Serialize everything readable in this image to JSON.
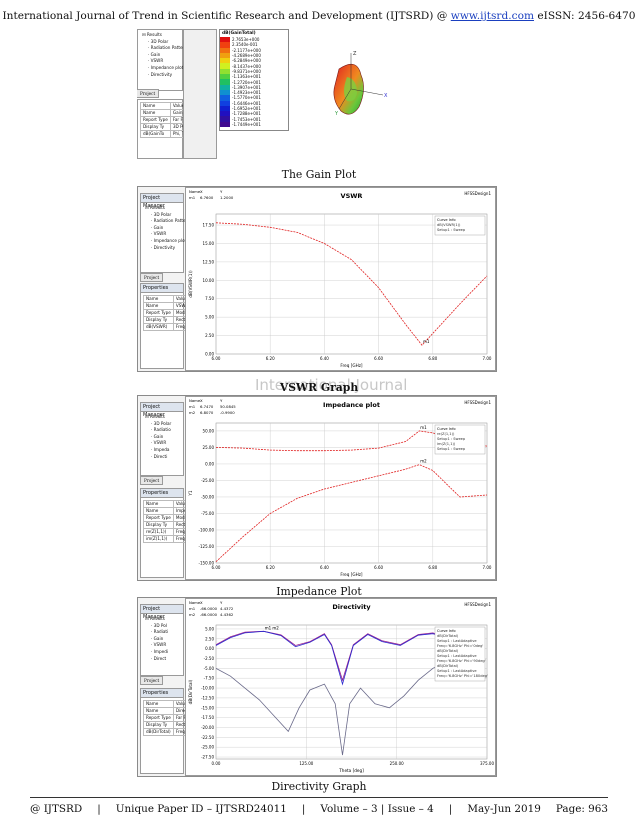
{
  "header": {
    "text": "International Journal of Trend in Scientific Research and Development (IJTSRD) @",
    "link": "www.ijtsrd.com",
    "issn": "eISSN: 2456-6470"
  },
  "footer": {
    "left": "@ IJTSRD",
    "paper_id": "Unique Paper ID – IJTSRD24011",
    "volume": "Volume – 3 | Issue – 4",
    "date": "May-Jun 2019",
    "page": "Page: 963"
  },
  "captions": {
    "gain": "The Gain Plot",
    "vswr": "VSWR Graph",
    "impedance": "Impedance Plot",
    "directivity": "Directivity Graph"
  },
  "watermark": "International Journal",
  "gain_figure": {
    "tree": [
      "Results",
      "3D Polar",
      "Radiation Pattern",
      "Gain",
      "VSWR",
      "Impedance plot",
      "Directivity"
    ],
    "props_header": [
      "Name",
      "Value"
    ],
    "props_rows": [
      [
        "Name",
        "Gain"
      ],
      [
        "Report Type",
        "Far Fiel"
      ],
      [
        "Display Ty",
        "3D Pol"
      ],
      [
        "dB(GainTo",
        "Phi, Th"
      ]
    ],
    "legend_title": "dB(GainTotal)",
    "legend_values": [
      "2.7653e+000",
      "2.3540e-001",
      "-2.1177e+000",
      "-4.2689e+000",
      "-6.2849e+000",
      "-8.1437e+000",
      "-9.8371e+000",
      "-1.1363e+001",
      "-1.2720e+001",
      "-1.3907e+001",
      "-1.4923e+001",
      "-1.5770e+001",
      "-1.6446e+001",
      "-1.6952e+001",
      "-1.7288e+001",
      "-1.7453e+001",
      "-1.7449e+001"
    ],
    "axes": [
      "Z",
      "X",
      "Y"
    ],
    "tab": "Project"
  },
  "vswr_figure": {
    "title": "VSWR",
    "design": "HFSSDesign1",
    "tree": [
      "Results",
      "3D Polar",
      "Radiation Patte",
      "Gain",
      "VSWR",
      "Impedance plot",
      "Directivity"
    ],
    "props_header": [
      "Name",
      "Value"
    ],
    "props_rows": [
      [
        "Name",
        "VSWR"
      ],
      [
        "Report Type",
        "Modal..."
      ],
      [
        "Display Ty",
        "Rectan..."
      ],
      [
        "dB(VSWR)",
        "Freq, dl"
      ]
    ],
    "marker_header": [
      "Name",
      "X",
      "Y"
    ],
    "marker_row": [
      "m1",
      "6.7600",
      "1.2000"
    ],
    "legend": [
      "Curve Info",
      "dB(VSWR(1))",
      "Setup1 : Sweep"
    ],
    "xlabel": "Freq [GHz]",
    "ylabel": "dB(VSWR(1))",
    "marker": "m1",
    "tab": "Project"
  },
  "impedance_figure": {
    "title": "Impedance plot",
    "design": "HFSSDesign1",
    "tree": [
      "Results",
      "3D Polar",
      "Radiatio",
      "Gain",
      "VSWR",
      "Impeda",
      "Directi"
    ],
    "props_header": [
      "Name",
      "Value"
    ],
    "props_rows": [
      [
        "Name",
        "Impeda..."
      ],
      [
        "Report Type",
        "Modal..."
      ],
      [
        "Display Ty",
        "Rectan..."
      ],
      [
        "re(Z(1,1))",
        "Freq,..."
      ],
      [
        "im(Z(1,1))",
        "Freq,..."
      ]
    ],
    "marker_header": [
      "Name",
      "X",
      "Y"
    ],
    "marker_rows": [
      [
        "m1",
        "6.7470",
        "50.0845"
      ],
      [
        "m2",
        "6.8070",
        "-0.9900"
      ]
    ],
    "legend": [
      "Curve Info",
      "re(Z(1,1))",
      "Setup1 : Sweep",
      "im(Z(1,1))",
      "Setup1 : Sweep"
    ],
    "xlabel": "Freq [GHz]",
    "ylabel": "Y1",
    "markers": [
      "m1",
      "m2"
    ],
    "tab": "Project"
  },
  "directivity_figure": {
    "title": "Directivity",
    "design": "HFSSDesign1",
    "tree": [
      "Results",
      "3D Pol",
      "Radiati",
      "Gain",
      "VSWR",
      "Impedi",
      "Direct"
    ],
    "props_header": [
      "Name",
      "Value"
    ],
    "props_rows": [
      [
        "Name",
        "Direct..."
      ],
      [
        "Report Type",
        "Far Fiel"
      ],
      [
        "Display Ty",
        "Rectan..."
      ],
      [
        "dB(DirTotal)",
        "Freq..."
      ]
    ],
    "marker_header": [
      "Name",
      "X",
      "Y"
    ],
    "marker_rows": [
      [
        "m1",
        "-66.0000",
        "4.4372"
      ],
      [
        "m2",
        "-66.0000",
        "4.4362"
      ]
    ],
    "legend": [
      "Curve Info",
      "dB(DirTotal)",
      "Setup1 : LastAdaptive",
      "Freq='6.8GHz' Phi='0deg'",
      "dB(DirTotal)",
      "Setup1 : LastAdaptive",
      "Freq='6.8GHz' Phi='90deg'",
      "dB(DirTotal)",
      "Setup1 : LastAdaptive",
      "Freq='6.8GHz' Phi='180deg'"
    ],
    "xlabel": "Theta [deg]",
    "ylabel": "dB(DirTotal)",
    "markers": [
      "m1",
      "m2"
    ],
    "tab": "Project"
  },
  "colors": {
    "curve_red": "#e02020",
    "curve_blue": "#2a2ad0",
    "curve_purple": "#9a1e8c",
    "curve_gray": "#6a6a8a",
    "grid": "#c8c8c8"
  },
  "chart_data": [
    {
      "type": "line",
      "title": "VSWR",
      "xlabel": "Freq [GHz]",
      "ylabel": "dB(VSWR(1))",
      "x_ticks": [
        "6.00",
        "6.20",
        "6.40",
        "6.60",
        "6.80",
        "7.00"
      ],
      "y_ticks": [
        "0.00",
        "2.50",
        "5.00",
        "7.50",
        "10.00",
        "12.50",
        "15.00",
        "17.50"
      ],
      "xlim": [
        6.0,
        7.0
      ],
      "ylim": [
        0,
        19
      ],
      "series": [
        {
          "name": "dB(VSWR(1))",
          "x": [
            6.0,
            6.1,
            6.2,
            6.3,
            6.4,
            6.5,
            6.6,
            6.7,
            6.76,
            6.8,
            6.9,
            7.0
          ],
          "y": [
            17.8,
            17.6,
            17.2,
            16.5,
            15.0,
            12.8,
            9.0,
            4.0,
            1.2,
            2.8,
            6.8,
            10.6
          ]
        }
      ]
    },
    {
      "type": "line",
      "title": "Impedance plot",
      "xlabel": "Freq [GHz]",
      "ylabel": "Y1",
      "x_ticks": [
        "6.00",
        "6.20",
        "6.40",
        "6.60",
        "6.80",
        "7.00"
      ],
      "y_ticks": [
        "50.00",
        "25.00",
        "0.00",
        "-25.00",
        "-50.00",
        "-75.00",
        "-100.00",
        "-125.00",
        "-150.00"
      ],
      "xlim": [
        6.0,
        7.0
      ],
      "ylim": [
        -150,
        62
      ],
      "series": [
        {
          "name": "re(Z(1,1))",
          "x": [
            6.0,
            6.1,
            6.2,
            6.3,
            6.4,
            6.5,
            6.6,
            6.7,
            6.75,
            6.8,
            6.85,
            6.9,
            7.0
          ],
          "y": [
            25,
            24,
            21,
            20,
            20,
            21,
            24,
            34,
            50,
            47,
            40,
            32,
            27
          ]
        },
        {
          "name": "im(Z(1,1))",
          "x": [
            6.0,
            6.1,
            6.2,
            6.3,
            6.4,
            6.5,
            6.6,
            6.7,
            6.75,
            6.8,
            6.85,
            6.9,
            7.0
          ],
          "y": [
            -148,
            -110,
            -75,
            -52,
            -38,
            -28,
            -18,
            -8,
            -1,
            -10,
            -30,
            -50,
            -47
          ]
        }
      ]
    },
    {
      "type": "line",
      "title": "Directivity",
      "xlabel": "Theta [deg]",
      "ylabel": "dB(DirTotal)",
      "x_ticks": [
        "0.00",
        "125.00",
        "250.00",
        "375.00"
      ],
      "y_ticks": [
        "5.00",
        "2.50",
        "0.00",
        "-2.50",
        "-5.00",
        "-7.50",
        "-10.00",
        "-12.50",
        "-15.00",
        "-17.50",
        "-20.00",
        "-22.50",
        "-25.00",
        "-27.50"
      ],
      "xlim": [
        0,
        375
      ],
      "ylim": [
        -28,
        6
      ],
      "series": [
        {
          "name": "Freq='6.8GHz' Phi='0deg'",
          "x": [
            0,
            20,
            40,
            66,
            90,
            110,
            130,
            150,
            160,
            175,
            190,
            210,
            230,
            255,
            280,
            300,
            320,
            340,
            360
          ],
          "y": [
            1.0,
            3.0,
            4.2,
            4.4,
            3.5,
            0.8,
            1.8,
            3.8,
            1.0,
            -8.0,
            1.0,
            3.8,
            2.0,
            1.0,
            3.6,
            4.0,
            3.0,
            2.0,
            1.5
          ]
        },
        {
          "name": "Freq='6.8GHz' Phi='90deg'",
          "x": [
            0,
            20,
            40,
            66,
            90,
            110,
            130,
            150,
            160,
            175,
            190,
            210,
            230,
            255,
            280,
            300,
            320,
            340,
            360
          ],
          "y": [
            0.8,
            2.8,
            4.0,
            4.4,
            3.3,
            0.5,
            1.6,
            3.6,
            0.8,
            -9.0,
            0.8,
            3.6,
            1.8,
            0.8,
            3.4,
            3.8,
            2.8,
            1.8,
            1.2
          ]
        },
        {
          "name": "Freq='6.8GHz' Phi='180deg'",
          "x": [
            0,
            20,
            40,
            60,
            80,
            100,
            115,
            130,
            150,
            165,
            175,
            185,
            200,
            220,
            240,
            260,
            280,
            300,
            320,
            340,
            360
          ],
          "y": [
            -5.0,
            -7.0,
            -10.0,
            -13.0,
            -17.0,
            -21.0,
            -15.0,
            -10.5,
            -9.0,
            -14.0,
            -27.0,
            -14.0,
            -10.0,
            -14.0,
            -15.0,
            -12.0,
            -8.0,
            -5.0,
            -3.0,
            -2.0,
            -2.0
          ]
        }
      ]
    }
  ]
}
